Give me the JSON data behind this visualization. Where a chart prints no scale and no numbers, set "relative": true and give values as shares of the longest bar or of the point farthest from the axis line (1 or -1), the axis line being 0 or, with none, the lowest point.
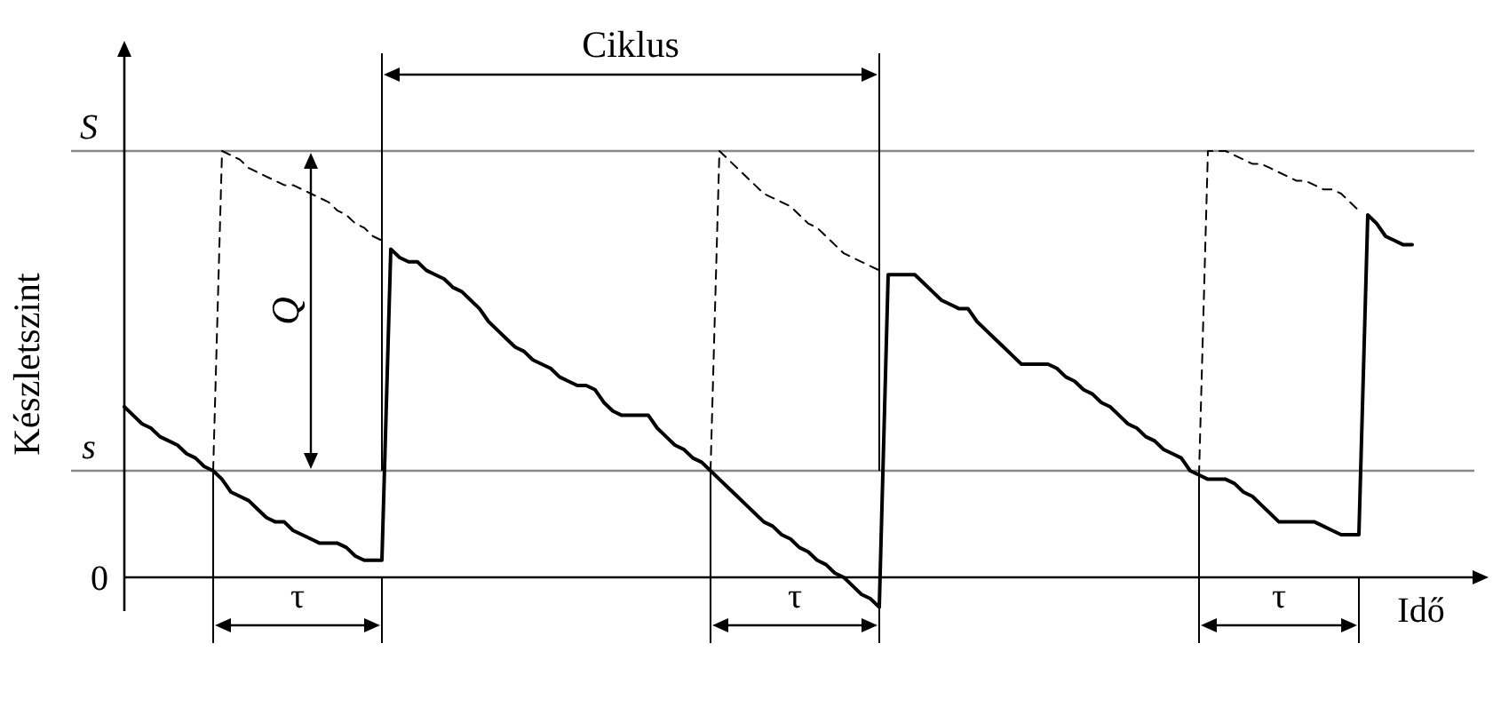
{
  "chart_data": {
    "type": "line",
    "relative": true,
    "xlabel": "Idő",
    "ylabel": "Készletszint",
    "ref_lines": [
      {
        "axis": "y",
        "value": 1,
        "label": "S",
        "color": "#888888"
      },
      {
        "axis": "y",
        "value": 0.25,
        "label": "s",
        "color": "#888888"
      }
    ],
    "categories": [
      null,
      null,
      null,
      null,
      null,
      null,
      null,
      null,
      null,
      null,
      null,
      null,
      null,
      null,
      null,
      null,
      null,
      null,
      null,
      null,
      null,
      null,
      null,
      null,
      null,
      null,
      null,
      null,
      null,
      null,
      null,
      null,
      null,
      null,
      null,
      null,
      null,
      null,
      null,
      null,
      null,
      null,
      null,
      null,
      null,
      null,
      null,
      null,
      null,
      null,
      null,
      null,
      null,
      null,
      null,
      null,
      null,
      null,
      null,
      null,
      null,
      null,
      null,
      null,
      null,
      null,
      null,
      null,
      null,
      null,
      null,
      null,
      null,
      null,
      null,
      null,
      null,
      null,
      null,
      null,
      null,
      null,
      null,
      null,
      null,
      null,
      null,
      null,
      null,
      null,
      null,
      null,
      null,
      null,
      null,
      null,
      null,
      null,
      null,
      null,
      null,
      null,
      null,
      null,
      null,
      null,
      null,
      null,
      null,
      null,
      null,
      null,
      null,
      null,
      null,
      null,
      null,
      null,
      null,
      null,
      null,
      null,
      null,
      null,
      null,
      null,
      null,
      null,
      null,
      null,
      null,
      null,
      null,
      null,
      null,
      null,
      null,
      null,
      null,
      null,
      null,
      null,
      null,
      null,
      null,
      null
    ],
    "series": [
      {
        "color": "#000000",
        "line_style": "solid",
        "values": [
          0.4,
          0.38,
          0.36,
          0.35,
          0.33,
          0.32,
          0.31,
          0.29,
          0.28,
          0.26,
          0.25,
          0.23,
          0.2,
          0.19,
          0.18,
          0.16,
          0.14,
          0.13,
          0.13,
          0.11,
          0.1,
          0.09,
          0.08,
          0.08,
          0.08,
          0.07,
          0.05,
          0.04,
          0.04,
          0.04,
          0.77,
          0.75,
          0.74,
          0.74,
          0.72,
          0.71,
          0.7,
          0.68,
          0.67,
          0.65,
          0.63,
          0.6,
          0.58,
          0.56,
          0.54,
          0.53,
          0.51,
          0.5,
          0.49,
          0.47,
          0.46,
          0.45,
          0.45,
          0.44,
          0.41,
          0.39,
          0.38,
          0.38,
          0.38,
          0.38,
          0.35,
          0.33,
          0.31,
          0.3,
          0.28,
          0.27,
          0.25,
          0.23,
          0.21,
          0.19,
          0.17,
          0.15,
          0.13,
          0.12,
          0.1,
          0.09,
          0.07,
          0.06,
          0.04,
          0.03,
          0.01,
          0,
          -0.02,
          -0.04,
          -0.05,
          -0.07,
          0.71,
          0.71,
          0.71,
          0.71,
          0.69,
          0.67,
          0.65,
          0.64,
          0.63,
          0.63,
          0.6,
          0.58,
          0.56,
          0.54,
          0.52,
          0.5,
          0.5,
          0.5,
          0.5,
          0.49,
          0.47,
          0.46,
          0.44,
          0.43,
          0.41,
          0.4,
          0.38,
          0.36,
          0.35,
          0.33,
          0.32,
          0.3,
          0.29,
          0.28,
          0.25,
          0.24,
          0.23,
          0.23,
          0.23,
          0.22,
          0.2,
          0.19,
          0.17,
          0.15,
          0.13,
          0.13,
          0.13,
          0.13,
          0.13,
          0.12,
          0.11,
          0.1,
          0.1,
          0.1,
          0.85,
          0.83,
          0.8,
          0.79,
          0.78,
          0.78
        ]
      },
      {
        "color": "#000000",
        "line_style": "dashed",
        "values": [
          null,
          null,
          null,
          null,
          null,
          null,
          null,
          null,
          null,
          null,
          0.25,
          1,
          0.99,
          0.98,
          0.96,
          0.95,
          0.94,
          0.93,
          0.92,
          0.92,
          0.91,
          0.9,
          0.89,
          0.88,
          0.86,
          0.85,
          0.83,
          0.82,
          0.8,
          0.79,
          null,
          null,
          null,
          null,
          null,
          null,
          null,
          null,
          null,
          null,
          null,
          null,
          null,
          null,
          null,
          null,
          null,
          null,
          null,
          null,
          null,
          null,
          null,
          null,
          null,
          null,
          null,
          null,
          null,
          null,
          null,
          null,
          null,
          null,
          null,
          null,
          0.25,
          1,
          0.98,
          0.96,
          0.94,
          0.92,
          0.9,
          0.89,
          0.88,
          0.87,
          0.85,
          0.83,
          0.82,
          0.8,
          0.78,
          0.76,
          0.75,
          0.74,
          0.73,
          0.72,
          null,
          null,
          null,
          null,
          null,
          null,
          null,
          null,
          null,
          null,
          null,
          null,
          null,
          null,
          null,
          null,
          null,
          null,
          null,
          null,
          null,
          null,
          null,
          null,
          null,
          null,
          null,
          null,
          null,
          null,
          null,
          null,
          null,
          null,
          null,
          0.24,
          1,
          1,
          1,
          0.99,
          0.98,
          0.97,
          0.97,
          0.96,
          0.95,
          0.94,
          0.93,
          0.93,
          0.92,
          0.91,
          0.91,
          0.9,
          0.88,
          0.86,
          null,
          null,
          null,
          null,
          null,
          null
        ]
      }
    ],
    "annotations": [
      "Ciklus",
      "Q",
      "τ",
      "τ",
      "τ",
      "0"
    ]
  }
}
